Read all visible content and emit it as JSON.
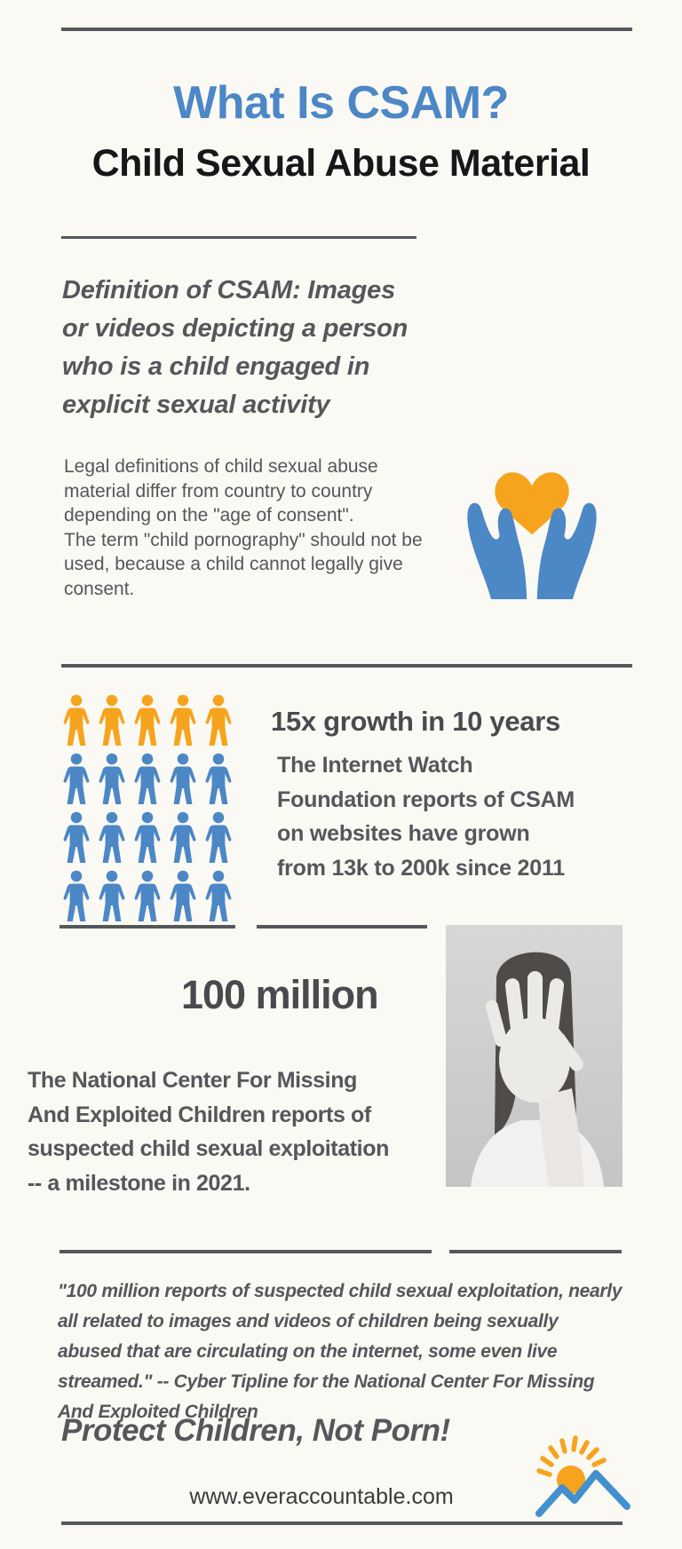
{
  "colors": {
    "background": "#FAF9F3",
    "rule": "#56575A",
    "blue": "#4C87C6",
    "orange": "#F6A41D",
    "heading_black": "#17171A",
    "text_gray": "#56565B",
    "stat_gray": "#4A4A4E",
    "photo_hair": "#4F4B49",
    "photo_hand": "#ECEAE7",
    "photo_shirt": "#F3F1EF"
  },
  "header": {
    "title": "What Is CSAM?",
    "subtitle": "Child Sexual Abuse Material"
  },
  "definition": {
    "text": "Definition of CSAM: Images\nor videos depicting a person\nwho is a child engaged in\nexplicit sexual activity"
  },
  "legal": {
    "text": "Legal definitions of child sexual abuse\nmaterial differ from country to country\ndepending on the \"age of consent\".\nThe term \"child pornography\" should not be\nused, because a child cannot legally give\nconsent."
  },
  "growth": {
    "heading": "15x growth in 10 years",
    "body": "The Internet Watch\nFoundation reports of CSAM\non websites have grown\nfrom 13k to 200k since 2011",
    "pictogram": {
      "columns": 5,
      "rows": [
        {
          "color": "orange",
          "count": 5
        },
        {
          "color": "blue",
          "count": 5
        },
        {
          "color": "blue",
          "count": 5
        },
        {
          "color": "blue",
          "count": 5
        }
      ]
    }
  },
  "milestone": {
    "stat": "100 million",
    "body": "The National Center For Missing\nAnd Exploited Children reports of\nsuspected child sexual exploitation\n-- a milestone in 2021."
  },
  "quote": {
    "text": "\"100 million reports of suspected child sexual exploitation, nearly\nall related to images and videos of children being sexually\nabused that are circulating on the internet, some even live\nstreamed.\"  -- Cyber Tipline for the National Center For Missing\nAnd Exploited Children"
  },
  "tagline": "Protect Children, Not Porn!",
  "footer": {
    "website": "www.everaccountable.com"
  }
}
